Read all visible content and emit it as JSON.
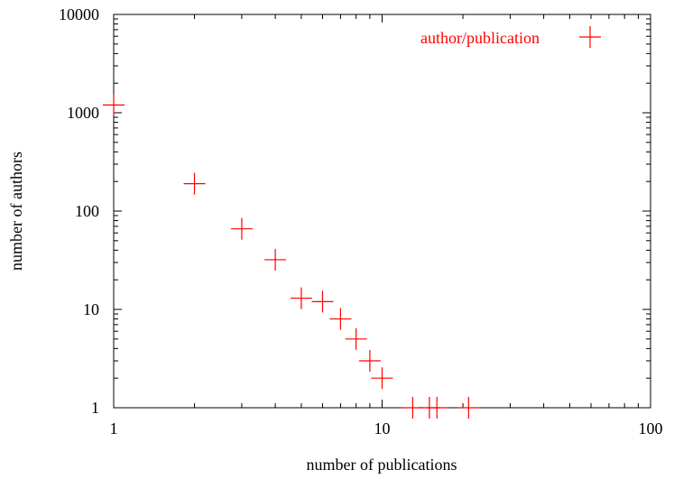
{
  "chart_data": {
    "type": "scatter",
    "title": "",
    "xlabel": "number of publications",
    "ylabel": "number of authors",
    "x_scale": "log",
    "y_scale": "log",
    "xlim": [
      1,
      100
    ],
    "ylim": [
      1,
      10000
    ],
    "x_ticks": [
      1,
      10,
      100
    ],
    "x_tick_labels": [
      "1",
      "10",
      "100"
    ],
    "y_ticks": [
      1,
      10,
      100,
      1000,
      10000
    ],
    "y_tick_labels": [
      "1",
      "10",
      "100",
      "1000",
      "10000"
    ],
    "grid": false,
    "legend_position": "top-right",
    "series": [
      {
        "name": "author/publication",
        "color": "#ff0000",
        "marker": "plus",
        "x": [
          1,
          2,
          3,
          4,
          5,
          6,
          7,
          8,
          9,
          10,
          13,
          15,
          16,
          21
        ],
        "y": [
          1200,
          190,
          66,
          32,
          13,
          12,
          8,
          5,
          3,
          2,
          1,
          1,
          1,
          1
        ]
      }
    ]
  }
}
